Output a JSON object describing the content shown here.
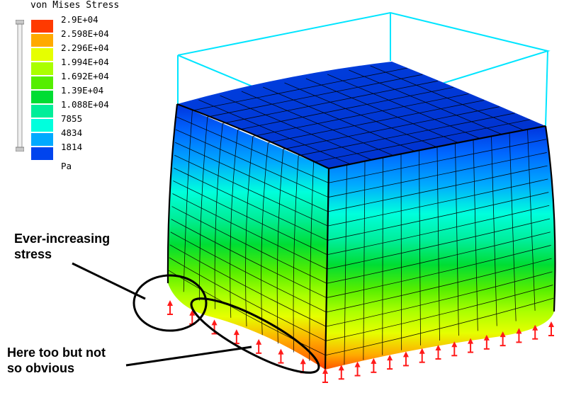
{
  "legend": {
    "title": "von Mises Stress",
    "unit": "Pa",
    "levels": [
      {
        "label": "2.9E+04",
        "color": "#ff3a00"
      },
      {
        "label": "2.598E+04",
        "color": "#ffaa00"
      },
      {
        "label": "2.296E+04",
        "color": "#e6ff00"
      },
      {
        "label": "1.994E+04",
        "color": "#aaff00"
      },
      {
        "label": "1.692E+04",
        "color": "#55ee00"
      },
      {
        "label": "1.39E+04",
        "color": "#00dd33"
      },
      {
        "label": "1.088E+04",
        "color": "#00ee99"
      },
      {
        "label": "7855",
        "color": "#00ffdd"
      },
      {
        "label": "4834",
        "color": "#00aaff"
      },
      {
        "label": "1814",
        "color": "#0044ee"
      }
    ]
  },
  "annotations": {
    "top_note": [
      "Ever-increasing",
      "stress"
    ],
    "bottom_note": [
      "Here too but not",
      "so obvious"
    ]
  },
  "colors": {
    "outline_box": "#00e5ff",
    "mesh_line": "#000000",
    "constraint_marker": "#ff1a1a",
    "callout": "#000000"
  }
}
